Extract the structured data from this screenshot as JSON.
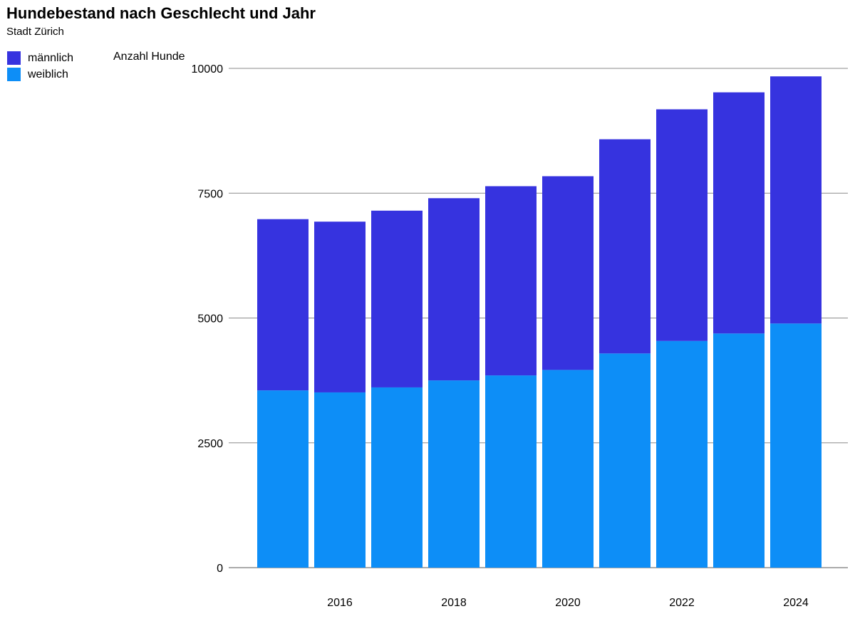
{
  "chart_data": {
    "type": "bar",
    "stacked": true,
    "title": "Hundebestand nach Geschlecht und Jahr",
    "subtitle": "Stadt Zürich",
    "ylabel": "Anzahl Hunde",
    "xlabel": "",
    "categories": [
      "2015",
      "2016",
      "2017",
      "2018",
      "2019",
      "2020",
      "2021",
      "2022",
      "2023",
      "2024"
    ],
    "x_tick_labels": [
      "2016",
      "2018",
      "2020",
      "2022",
      "2024"
    ],
    "y_ticks": [
      0,
      2500,
      5000,
      7500,
      10000
    ],
    "ylim": [
      0,
      10000
    ],
    "grid": true,
    "legend_placement": "top-left",
    "series": [
      {
        "name": "weiblich",
        "color": "#0d8ef7",
        "values": [
          3550,
          3510,
          3610,
          3750,
          3850,
          3960,
          4290,
          4540,
          4690,
          4890
        ]
      },
      {
        "name": "männlich",
        "color": "#3633df",
        "values": [
          3430,
          3420,
          3540,
          3650,
          3790,
          3880,
          4290,
          4640,
          4830,
          4950
        ]
      }
    ],
    "legend_order": [
      "männlich",
      "weiblich"
    ]
  }
}
